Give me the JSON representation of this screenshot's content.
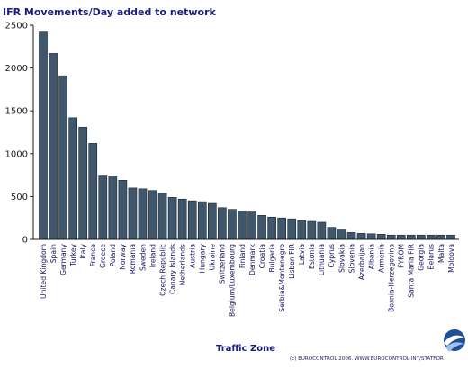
{
  "chart_data": {
    "type": "bar",
    "title": "IFR Movements/Day added to network",
    "xlabel": "Traffic Zone",
    "ylabel": "",
    "ylim": [
      0,
      2500
    ],
    "yticks": [
      0,
      500,
      1000,
      1500,
      2000,
      2500
    ],
    "grid": false,
    "categories": [
      "United Kingdom",
      "Spain",
      "Germany",
      "Turkey",
      "Italy",
      "France",
      "Greece",
      "Poland",
      "Norway",
      "Romania",
      "Sweden",
      "Ireland",
      "Czech Republic",
      "Canary Islands",
      "Netherlands",
      "Austria",
      "Hungary",
      "Ukraine",
      "Switzerland",
      "Belgium/Luxembourg",
      "Finland",
      "Denmark",
      "Croatia",
      "Bulgaria",
      "Serbia&Montenegro",
      "Lisbon FIR",
      "Latvia",
      "Estonia",
      "Lithuania",
      "Cyprus",
      "Slovakia",
      "Slovenia",
      "Azerbaijan",
      "Albania",
      "Armenia",
      "Bosnia-Herzegovina",
      "FYROM",
      "Santa Maria FIR",
      "Georgia",
      "Belarus",
      "Malta",
      "Moldova"
    ],
    "values": [
      2420,
      2170,
      1910,
      1420,
      1310,
      1120,
      740,
      730,
      690,
      600,
      590,
      570,
      540,
      490,
      470,
      450,
      440,
      420,
      370,
      350,
      330,
      320,
      280,
      260,
      250,
      240,
      220,
      210,
      200,
      140,
      110,
      80,
      70,
      65,
      60,
      50,
      50,
      50,
      50,
      50,
      50,
      50
    ],
    "bar_color": "#3f566b"
  },
  "footer": {
    "credit": "(c) EUROCONTROL 2006.  WWW.EUROCONTROL.INT/STATFOR",
    "logo_name": "eurocontrol-logo"
  }
}
